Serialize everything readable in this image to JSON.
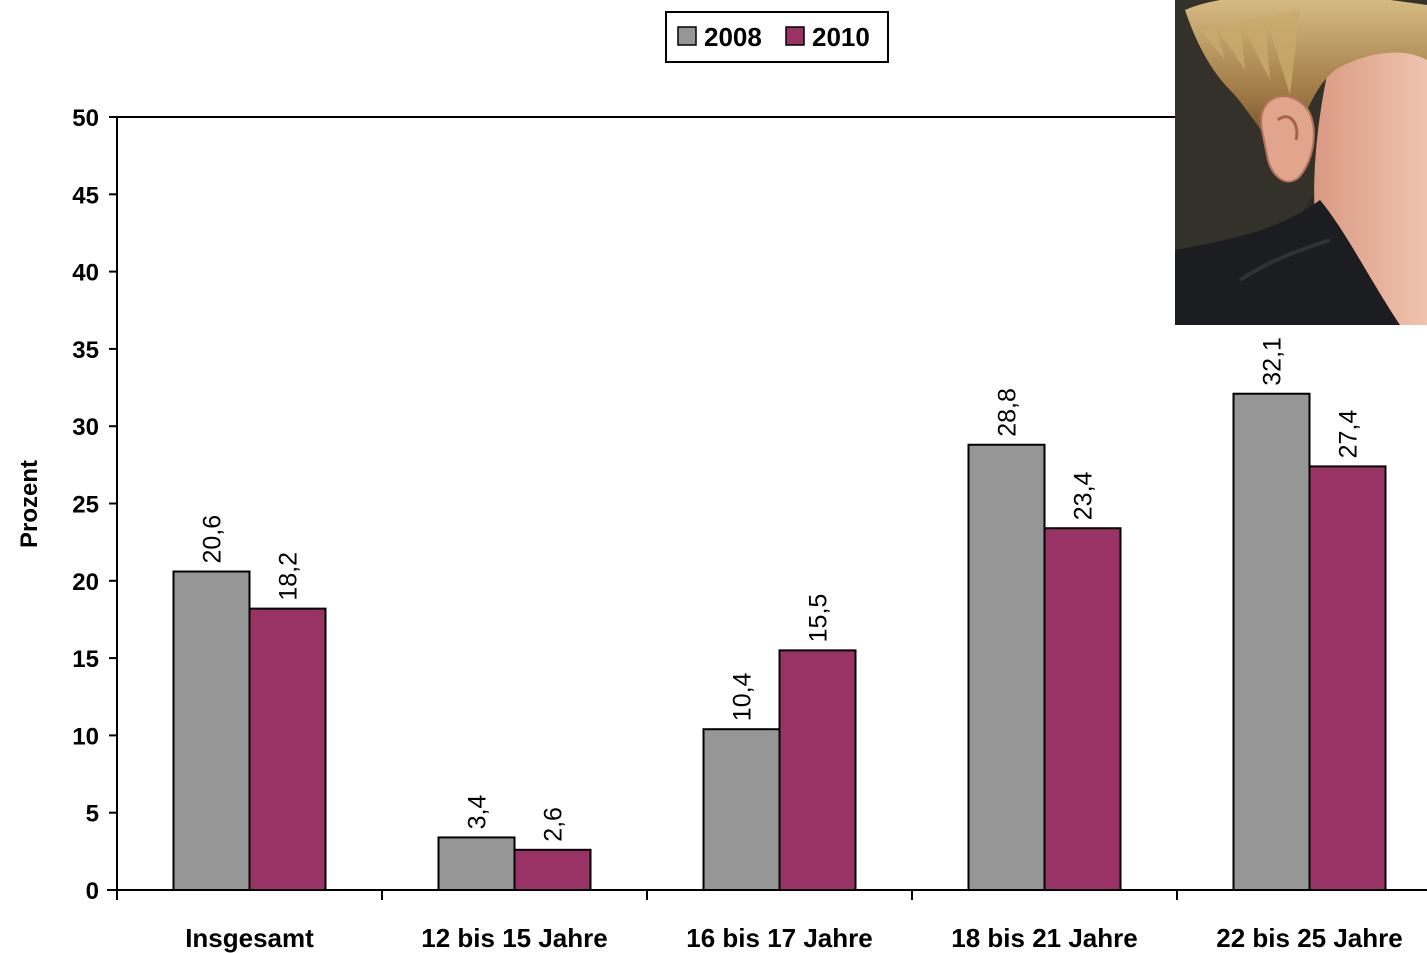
{
  "chart_data": {
    "type": "bar",
    "categories": [
      "Insgesamt",
      "12 bis 15 Jahre",
      "16 bis 17 Jahre",
      "18 bis 21 Jahre",
      "22 bis 25 Jahre"
    ],
    "series": [
      {
        "name": "2008",
        "color": "#969696",
        "values": [
          20.6,
          3.4,
          10.4,
          28.8,
          32.1
        ],
        "labels": [
          "20,6",
          "3,4",
          "10,4",
          "28,8",
          "32,1"
        ]
      },
      {
        "name": "2010",
        "color": "#993366",
        "values": [
          18.2,
          2.6,
          15.5,
          23.4,
          27.4
        ],
        "labels": [
          "18,2",
          "2,6",
          "15,5",
          "23,4",
          "27,4"
        ]
      }
    ],
    "ylabel": "Prozent",
    "ylim": [
      0,
      50
    ],
    "yticks": [
      0,
      5,
      10,
      15,
      20,
      25,
      30,
      35,
      40,
      45,
      50
    ],
    "grid": false,
    "legend_position": "top-center"
  },
  "photo": {
    "name": "photo-inset",
    "description_colors": {
      "hair": "#b89860",
      "skin": "#e9b6a0",
      "hood": "#1c1d20",
      "background": "#2c2a26"
    }
  }
}
